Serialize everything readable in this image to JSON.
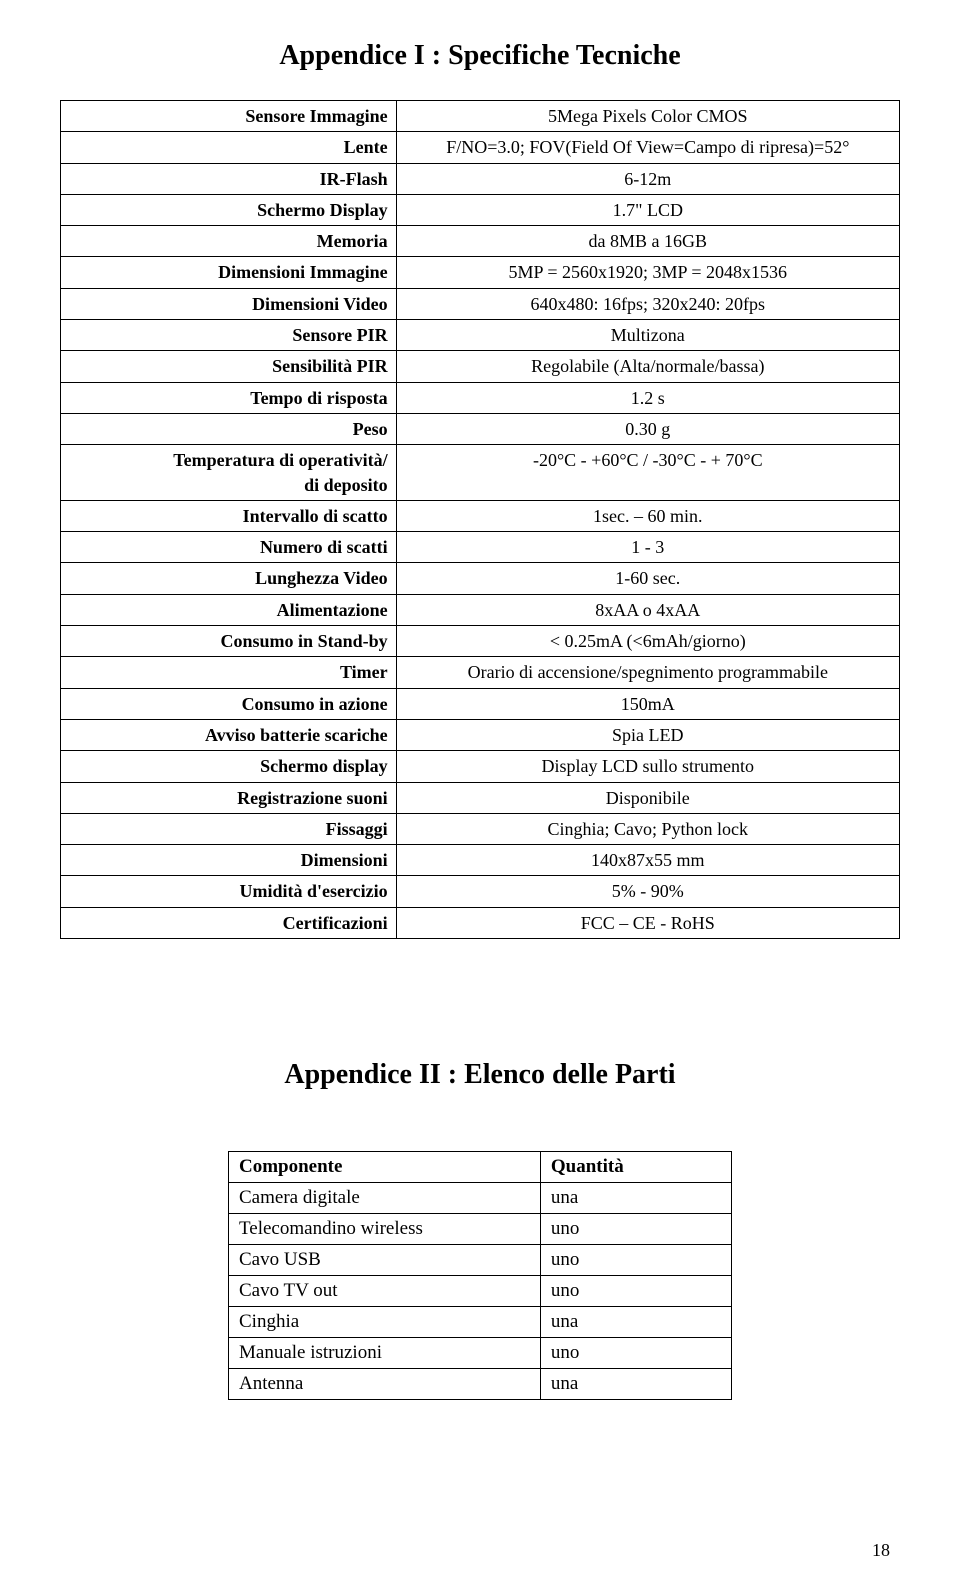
{
  "appendix1": {
    "title": "Appendice I : Specifiche Tecniche",
    "rows": [
      {
        "label": "Sensore Immagine",
        "value": "5Mega Pixels Color CMOS"
      },
      {
        "label": "Lente",
        "value": "F/NO=3.0; FOV(Field Of View=Campo di ripresa)=52°"
      },
      {
        "label": "IR-Flash",
        "value": "6-12m"
      },
      {
        "label": "Schermo Display",
        "value": "1.7\" LCD"
      },
      {
        "label": "Memoria",
        "value": "da 8MB a 16GB"
      },
      {
        "label": "Dimensioni Immagine",
        "value": "5MP = 2560x1920; 3MP = 2048x1536"
      },
      {
        "label": "Dimensioni Video",
        "value": "640x480: 16fps; 320x240: 20fps"
      },
      {
        "label": "Sensore PIR",
        "value": "Multizona"
      },
      {
        "label": "Sensibilità PIR",
        "value": "Regolabile (Alta/normale/bassa)"
      },
      {
        "label": "Tempo di risposta",
        "value": "1.2 s"
      },
      {
        "label": "Peso",
        "value": "0.30 g"
      },
      {
        "label": "Temperatura di operatività/\ndi deposito",
        "value": "-20°C - +60°C / -30°C - + 70°C"
      },
      {
        "label": "Intervallo di scatto",
        "value": "1sec. – 60 min."
      },
      {
        "label": "Numero di scatti",
        "value": "1 - 3"
      },
      {
        "label": "Lunghezza Video",
        "value": "1-60 sec."
      },
      {
        "label": "Alimentazione",
        "value": "8xAA o 4xAA"
      },
      {
        "label": "Consumo in Stand-by",
        "value": "< 0.25mA (<6mAh/giorno)"
      },
      {
        "label": "Timer",
        "value": "Orario di accensione/spegnimento programmabile"
      },
      {
        "label": "Consumo in azione",
        "value": "150mA"
      },
      {
        "label": "Avviso batterie scariche",
        "value": "Spia LED"
      },
      {
        "label": "Schermo display",
        "value": "Display LCD sullo strumento"
      },
      {
        "label": "Registrazione suoni",
        "value": "Disponibile"
      },
      {
        "label": "Fissaggi",
        "value": "Cinghia; Cavo; Python lock"
      },
      {
        "label": "Dimensioni",
        "value": "140x87x55 mm"
      },
      {
        "label": "Umidità d'esercizio",
        "value": "5% - 90%"
      },
      {
        "label": "Certificazioni",
        "value": "FCC – CE - RoHS"
      }
    ]
  },
  "appendix2": {
    "title": "Appendice II : Elenco delle Parti",
    "headers": {
      "col1": "Componente",
      "col2": "Quantità"
    },
    "rows": [
      {
        "component": "Camera digitale",
        "qty": "una"
      },
      {
        "component": "Telecomandino wireless",
        "qty": "uno"
      },
      {
        "component": "Cavo USB",
        "qty": "uno"
      },
      {
        "component": "Cavo TV out",
        "qty": "uno"
      },
      {
        "component": "Cinghia",
        "qty": "una"
      },
      {
        "component": "Manuale istruzioni",
        "qty": "uno"
      },
      {
        "component": "Antenna",
        "qty": "una"
      }
    ]
  },
  "page_number": "18"
}
